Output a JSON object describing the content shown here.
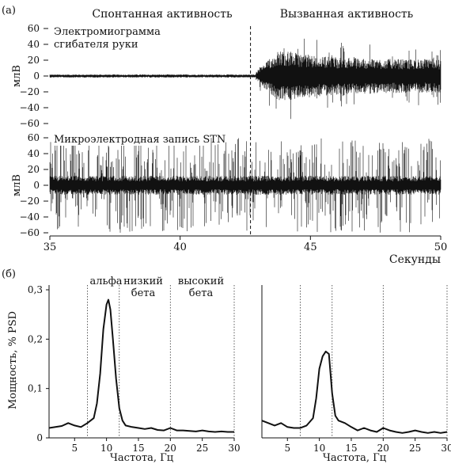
{
  "panel_labels": {
    "a": "(а)",
    "b": "(б)"
  },
  "chart_data": [
    {
      "type": "line",
      "panel": "a",
      "title_left": "Спонтанная активность",
      "title_right": "Вызванная активность",
      "event_time": 42.7,
      "x_range": [
        35,
        50
      ],
      "xticks": [
        35,
        40,
        45,
        50
      ],
      "xlabel": "Секунды",
      "ylabel": "млВ",
      "y_range": [
        -60,
        60
      ],
      "yticks": [
        60,
        40,
        20,
        0,
        -20,
        -40,
        -60
      ],
      "traces": [
        {
          "name": "Электромиограмма",
          "name_line2": "сгибателя руки",
          "baseline_amplitude": 2,
          "burst_onset": 42.9,
          "burst_peak_time": 43.8,
          "burst_peak": 55,
          "burst_trough": -58,
          "burst_end": 50
        },
        {
          "name": "Микроэлектродная запись STN",
          "background_amplitude": 10,
          "spike_range": [
            -60,
            60
          ]
        }
      ]
    },
    {
      "type": "line",
      "panel": "b-left",
      "xlabel": "Частота, Гц",
      "ylabel": "Мощность, % PSD",
      "xlim": [
        1,
        30
      ],
      "xticks": [
        5,
        10,
        15,
        20,
        25,
        30
      ],
      "ylim": [
        0,
        0.3
      ],
      "yticks": [
        0,
        0.1,
        0.2,
        0.3
      ],
      "bands": [
        {
          "label": "альфа",
          "from": 7,
          "to": 12
        },
        {
          "label": "низкий",
          "label2": "бета",
          "from": 12,
          "to": 20
        },
        {
          "label": "высокий",
          "label2": "бета",
          "from": 20,
          "to": 30
        }
      ],
      "band_boundaries": [
        7,
        12,
        20,
        30
      ],
      "x": [
        1,
        2,
        3,
        4,
        5,
        6,
        7,
        8,
        8.5,
        9,
        9.5,
        10,
        10.3,
        10.6,
        11,
        11.5,
        12,
        12.5,
        13,
        14,
        15,
        16,
        17,
        18,
        19,
        20,
        21,
        22,
        23,
        24,
        25,
        26,
        27,
        28,
        29,
        30
      ],
      "y": [
        0.02,
        0.022,
        0.024,
        0.03,
        0.025,
        0.022,
        0.03,
        0.04,
        0.07,
        0.13,
        0.22,
        0.27,
        0.28,
        0.26,
        0.2,
        0.12,
        0.06,
        0.035,
        0.025,
        0.022,
        0.02,
        0.018,
        0.02,
        0.016,
        0.015,
        0.02,
        0.015,
        0.015,
        0.014,
        0.013,
        0.015,
        0.013,
        0.012,
        0.013,
        0.012,
        0.012
      ]
    },
    {
      "type": "line",
      "panel": "b-right",
      "xlabel": "Частота, Гц",
      "xlim": [
        1,
        30
      ],
      "xticks": [
        5,
        10,
        15,
        20,
        25,
        30
      ],
      "ylim": [
        0,
        0.3
      ],
      "band_boundaries": [
        7,
        12,
        20,
        30
      ],
      "x": [
        1,
        2,
        3,
        4,
        5,
        6,
        7,
        8,
        9,
        9.5,
        10,
        10.5,
        11,
        11.5,
        12,
        12.5,
        13,
        14,
        15,
        16,
        17,
        18,
        19,
        20,
        21,
        22,
        23,
        24,
        25,
        26,
        27,
        28,
        29,
        30
      ],
      "y": [
        0.035,
        0.03,
        0.025,
        0.03,
        0.022,
        0.02,
        0.02,
        0.025,
        0.04,
        0.08,
        0.14,
        0.165,
        0.175,
        0.17,
        0.09,
        0.045,
        0.035,
        0.03,
        0.022,
        0.015,
        0.02,
        0.015,
        0.012,
        0.02,
        0.015,
        0.012,
        0.01,
        0.012,
        0.015,
        0.012,
        0.01,
        0.012,
        0.01,
        0.012
      ]
    }
  ]
}
